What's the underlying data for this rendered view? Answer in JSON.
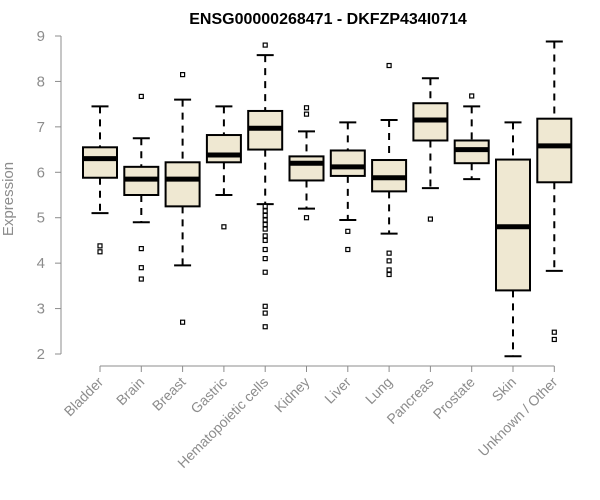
{
  "chart_data": {
    "type": "boxplot",
    "title": "ENSG00000268471 - DKFZP434I0714",
    "xlabel": "",
    "ylabel": "Expression",
    "ylim": [
      2,
      9
    ],
    "yticks": [
      2,
      3,
      4,
      5,
      6,
      7,
      8,
      9
    ],
    "box_fill": "#efe8d2",
    "categories": [
      "Bladder",
      "Brain",
      "Breast",
      "Gastric",
      "Hematopoietic cells",
      "Kidney",
      "Liver",
      "Lung",
      "Pancreas",
      "Prostate",
      "Skin",
      "Unknown / Other"
    ],
    "boxes": [
      {
        "q1": 5.88,
        "median": 6.3,
        "q3": 6.55,
        "whisker_low": 5.1,
        "whisker_high": 7.45,
        "outliers": [
          4.25,
          4.38
        ]
      },
      {
        "q1": 5.5,
        "median": 5.85,
        "q3": 6.12,
        "whisker_low": 4.9,
        "whisker_high": 6.75,
        "outliers": [
          3.65,
          3.9,
          4.32,
          7.67
        ]
      },
      {
        "q1": 5.25,
        "median": 5.85,
        "q3": 6.22,
        "whisker_low": 3.95,
        "whisker_high": 7.6,
        "outliers": [
          2.7,
          8.15
        ]
      },
      {
        "q1": 6.22,
        "median": 6.38,
        "q3": 6.82,
        "whisker_low": 5.5,
        "whisker_high": 7.45,
        "outliers": [
          4.8
        ]
      },
      {
        "q1": 6.5,
        "median": 6.97,
        "q3": 7.35,
        "whisker_low": 5.3,
        "whisker_high": 8.58,
        "outliers": [
          2.6,
          2.9,
          3.05,
          3.8,
          4.1,
          4.3,
          4.5,
          4.6,
          4.75,
          4.85,
          4.95,
          5.05,
          5.15,
          5.25,
          8.8
        ]
      },
      {
        "q1": 5.82,
        "median": 6.2,
        "q3": 6.35,
        "whisker_low": 5.2,
        "whisker_high": 6.9,
        "outliers": [
          5.0,
          7.28,
          7.42
        ]
      },
      {
        "q1": 5.92,
        "median": 6.12,
        "q3": 6.48,
        "whisker_low": 4.95,
        "whisker_high": 7.1,
        "outliers": [
          4.3,
          4.7
        ]
      },
      {
        "q1": 5.58,
        "median": 5.88,
        "q3": 6.27,
        "whisker_low": 4.65,
        "whisker_high": 7.15,
        "outliers": [
          3.75,
          3.85,
          4.05,
          4.22,
          8.35
        ]
      },
      {
        "q1": 6.7,
        "median": 7.15,
        "q3": 7.52,
        "whisker_low": 5.65,
        "whisker_high": 8.07,
        "outliers": [
          4.97
        ]
      },
      {
        "q1": 6.2,
        "median": 6.5,
        "q3": 6.7,
        "whisker_low": 5.85,
        "whisker_high": 7.45,
        "outliers": [
          7.68
        ]
      },
      {
        "q1": 3.4,
        "median": 4.8,
        "q3": 6.28,
        "whisker_low": 1.95,
        "whisker_high": 7.1,
        "outliers": []
      },
      {
        "q1": 5.78,
        "median": 6.58,
        "q3": 7.18,
        "whisker_low": 3.83,
        "whisker_high": 8.88,
        "outliers": [
          2.32,
          2.48
        ]
      }
    ]
  }
}
